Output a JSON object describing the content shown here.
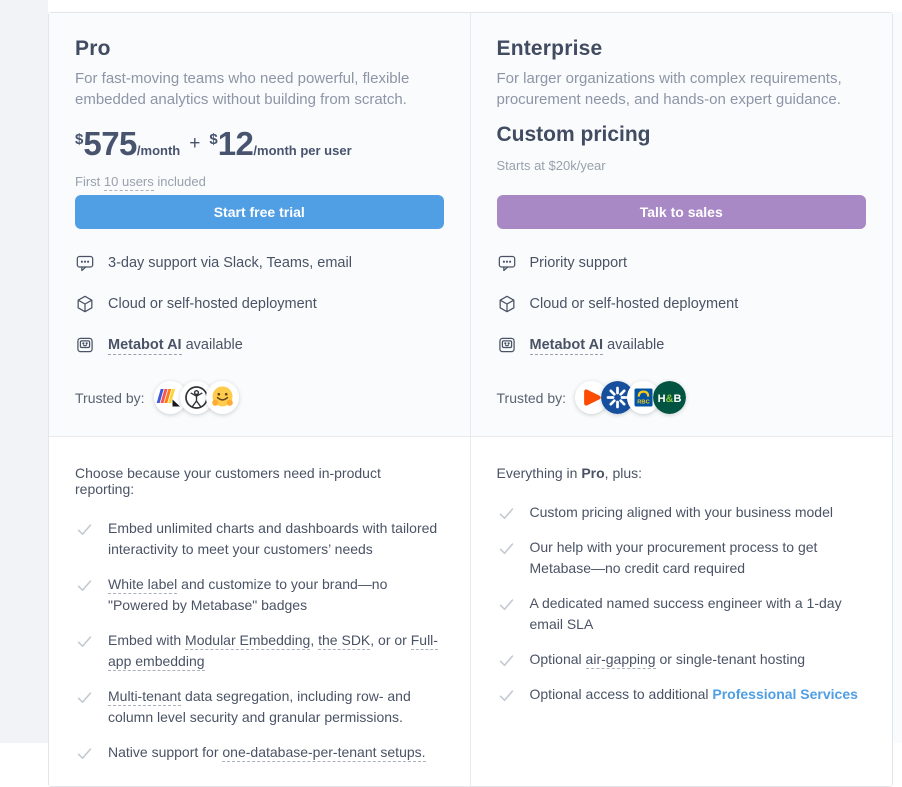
{
  "colors": {
    "pro_accent": "#509ee3",
    "enterprise_accent": "#a989c5",
    "link": "#509ee3"
  },
  "pro": {
    "title": "Pro",
    "description": "For fast-moving teams who need powerful, flexible embedded analytics without building from scratch.",
    "price": {
      "currency": "$",
      "amount": "575",
      "period": "/month",
      "plus": "+",
      "user_currency": "$",
      "user_amount": "12",
      "user_period": "/month per user"
    },
    "included_note": [
      {
        "t": "First "
      },
      {
        "t": "10 users",
        "s": "dashed"
      },
      {
        "t": " included"
      }
    ],
    "cta": "Start free trial",
    "features": [
      {
        "icon": "chat-bubble",
        "segments": [
          {
            "t": "3-day support via Slack, Teams, email"
          }
        ]
      },
      {
        "icon": "cube",
        "segments": [
          {
            "t": "Cloud or self-hosted deployment"
          }
        ]
      },
      {
        "icon": "robot",
        "segments": [
          {
            "t": "Metabot AI",
            "s": "bold-dashed"
          },
          {
            "t": " available"
          }
        ]
      }
    ],
    "trusted_label": "Trusted by:",
    "trusted_logos": [
      {
        "name": "stripes-logo"
      },
      {
        "name": "vitruvian-circle-logo"
      },
      {
        "name": "hugging-face-logo"
      }
    ],
    "bottom_intro": [
      {
        "t": "Choose because your customers need in-product reporting:"
      }
    ],
    "checklist": [
      {
        "segments": [
          {
            "t": "Embed unlimited charts and dashboards with tailored interactivity to meet your customers’ needs"
          }
        ]
      },
      {
        "segments": [
          {
            "t": "White label",
            "s": "dashed"
          },
          {
            "t": " and customize to your brand—no \"Powered by Metabase\" badges"
          }
        ]
      },
      {
        "segments": [
          {
            "t": "Embed with "
          },
          {
            "t": "Modular Embedding",
            "s": "dashed"
          },
          {
            "t": ", "
          },
          {
            "t": "the SDK",
            "s": "dashed"
          },
          {
            "t": ", or or "
          },
          {
            "t": "Full-app embedding",
            "s": "dashed"
          }
        ]
      },
      {
        "segments": [
          {
            "t": "Multi-tenant",
            "s": "dashed"
          },
          {
            "t": " data segregation, including row- and column level security and granular permissions."
          }
        ]
      },
      {
        "segments": [
          {
            "t": "Native support for "
          },
          {
            "t": "one-database-per-tenant setups.",
            "s": "dashed"
          }
        ]
      }
    ]
  },
  "enterprise": {
    "title": "Enterprise",
    "description": "For larger organizations with complex requirements, procurement needs, and hands-on expert guidance.",
    "custom_pricing": "Custom pricing",
    "starts_note": "Starts at $20k/year",
    "cta": "Talk to sales",
    "features": [
      {
        "icon": "chat-bubble",
        "segments": [
          {
            "t": "Priority support"
          }
        ]
      },
      {
        "icon": "cube",
        "segments": [
          {
            "t": "Cloud or self-hosted deployment"
          }
        ]
      },
      {
        "icon": "robot",
        "segments": [
          {
            "t": "Metabot AI",
            "s": "bold-dashed"
          },
          {
            "t": " available"
          }
        ]
      }
    ],
    "trusted_label": "Trusted by:",
    "trusted_logos": [
      {
        "name": "orange-triangle-logo"
      },
      {
        "name": "blue-propeller-logo"
      },
      {
        "name": "rbc-logo"
      },
      {
        "name": "holland-barrett-logo"
      }
    ],
    "bottom_intro": [
      {
        "t": "Everything in "
      },
      {
        "t": "Pro",
        "s": "bold"
      },
      {
        "t": ", plus:"
      }
    ],
    "checklist": [
      {
        "segments": [
          {
            "t": "Custom pricing aligned with your business model"
          }
        ]
      },
      {
        "segments": [
          {
            "t": "Our help with your procurement process to get Metabase—no credit card required"
          }
        ]
      },
      {
        "segments": [
          {
            "t": "A dedicated named success engineer with a 1-day email SLA"
          }
        ]
      },
      {
        "segments": [
          {
            "t": "Optional "
          },
          {
            "t": "air-gapping",
            "s": "dashed"
          },
          {
            "t": " or single-tenant hosting"
          }
        ]
      },
      {
        "segments": [
          {
            "t": "Optional access to additional "
          },
          {
            "t": "Professional Services",
            "s": "link"
          }
        ]
      }
    ]
  }
}
